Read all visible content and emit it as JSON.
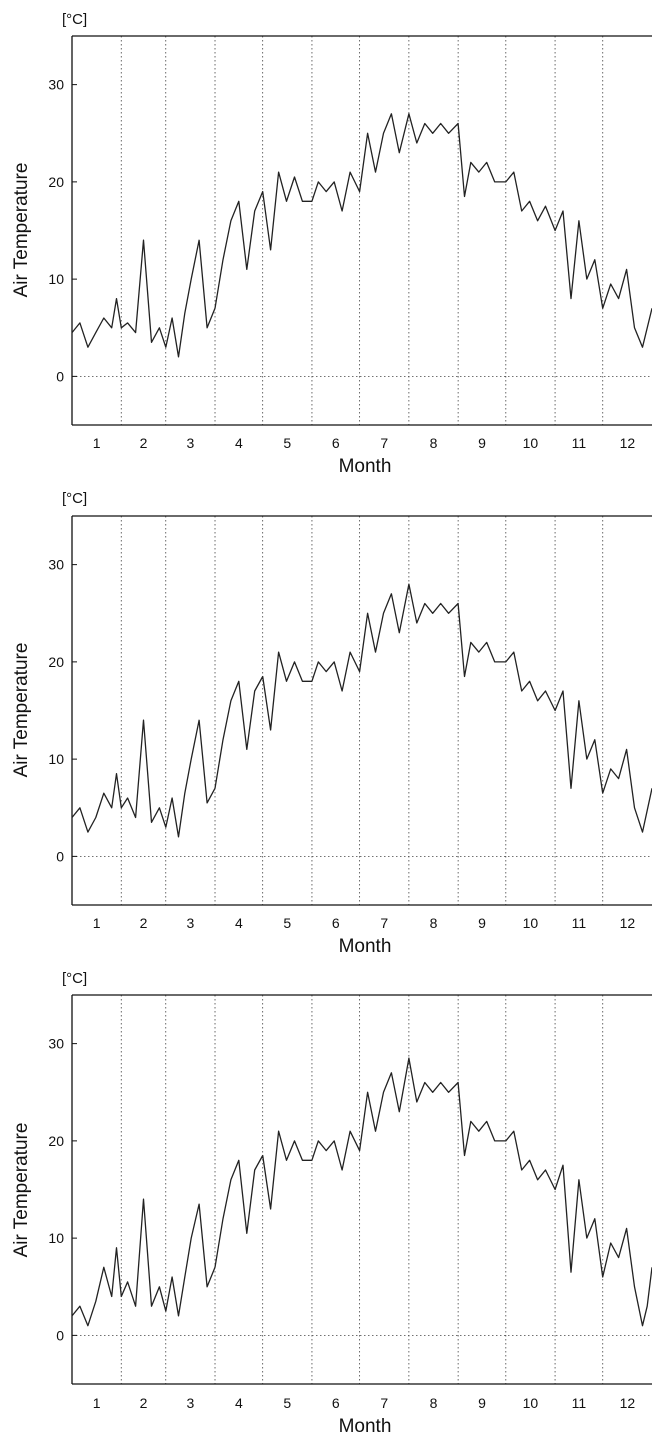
{
  "chart_data": [
    {
      "type": "line",
      "unit_label": "[°C]",
      "xlabel": "Month",
      "ylabel": "Air Temperature",
      "xlim": [
        0,
        365
      ],
      "ylim": [
        -5,
        35
      ],
      "yticks": [
        0,
        10,
        20,
        30
      ],
      "xtick_labels": [
        "1",
        "2",
        "3",
        "4",
        "5",
        "6",
        "7",
        "8",
        "9",
        "10",
        "11",
        "12"
      ],
      "month_boundaries_day": [
        31,
        59,
        90,
        120,
        151,
        181,
        212,
        243,
        273,
        304,
        334
      ],
      "grid": "dotted vertical month boundaries and dotted zero line",
      "series": [
        {
          "x": [
            0,
            5,
            10,
            15,
            20,
            25,
            28,
            31,
            35,
            40,
            45,
            50,
            55,
            59,
            63,
            67,
            71,
            75,
            80,
            85,
            90,
            95,
            100,
            105,
            110,
            115,
            120,
            125,
            130,
            135,
            140,
            145,
            151,
            155,
            160,
            165,
            170,
            175,
            181,
            186,
            191,
            196,
            201,
            206,
            212,
            217,
            222,
            227,
            232,
            237,
            243,
            247,
            251,
            256,
            261,
            266,
            273,
            278,
            283,
            288,
            293,
            298,
            304,
            309,
            314,
            319,
            324,
            329,
            334,
            339,
            344,
            349,
            354,
            359,
            365
          ],
          "y": [
            4.5,
            5.5,
            3,
            4.5,
            6,
            5,
            8,
            5,
            5.5,
            4.5,
            14,
            3.5,
            5,
            3,
            6,
            2,
            6.5,
            10,
            14,
            5,
            7,
            12,
            16,
            18,
            11,
            17,
            19,
            13,
            21,
            18,
            20.5,
            18,
            18,
            20,
            19,
            20,
            17,
            21,
            19,
            25,
            21,
            25,
            27,
            23,
            27,
            24,
            26,
            25,
            26,
            25,
            26,
            18.5,
            22,
            21,
            22,
            20,
            20,
            21,
            17,
            18,
            16,
            17.5,
            15,
            17,
            8,
            16,
            10,
            12,
            7,
            9.5,
            8,
            11,
            5,
            3,
            7
          ]
        }
      ]
    },
    {
      "type": "line",
      "unit_label": "[°C]",
      "xlabel": "Month",
      "ylabel": "Air Temperature",
      "xlim": [
        0,
        365
      ],
      "ylim": [
        -5,
        35
      ],
      "yticks": [
        0,
        10,
        20,
        30
      ],
      "xtick_labels": [
        "1",
        "2",
        "3",
        "4",
        "5",
        "6",
        "7",
        "8",
        "9",
        "10",
        "11",
        "12"
      ],
      "month_boundaries_day": [
        31,
        59,
        90,
        120,
        151,
        181,
        212,
        243,
        273,
        304,
        334
      ],
      "grid": "dotted vertical month boundaries and dotted zero line",
      "series": [
        {
          "x": [
            0,
            5,
            10,
            15,
            20,
            25,
            28,
            31,
            35,
            40,
            45,
            50,
            55,
            59,
            63,
            67,
            71,
            75,
            80,
            85,
            90,
            95,
            100,
            105,
            110,
            115,
            120,
            125,
            130,
            135,
            140,
            145,
            151,
            155,
            160,
            165,
            170,
            175,
            181,
            186,
            191,
            196,
            201,
            206,
            212,
            217,
            222,
            227,
            232,
            237,
            243,
            247,
            251,
            256,
            261,
            266,
            273,
            278,
            283,
            288,
            293,
            298,
            304,
            309,
            314,
            319,
            324,
            329,
            334,
            339,
            344,
            349,
            354,
            359,
            365
          ],
          "y": [
            4,
            5,
            2.5,
            4,
            6.5,
            5,
            8.5,
            5,
            6,
            4,
            14,
            3.5,
            5,
            3,
            6,
            2,
            6.5,
            10,
            14,
            5.5,
            7,
            12,
            16,
            18,
            11,
            17,
            18.5,
            13,
            21,
            18,
            20,
            18,
            18,
            20,
            19,
            20,
            17,
            21,
            19,
            25,
            21,
            25,
            27,
            23,
            28,
            24,
            26,
            25,
            26,
            25,
            26,
            18.5,
            22,
            21,
            22,
            20,
            20,
            21,
            17,
            18,
            16,
            17,
            15,
            17,
            7,
            16,
            10,
            12,
            6.5,
            9,
            8,
            11,
            5,
            2.5,
            7
          ]
        }
      ]
    },
    {
      "type": "line",
      "unit_label": "[°C]",
      "xlabel": "Month",
      "ylabel": "Air Temperature",
      "xlim": [
        0,
        365
      ],
      "ylim": [
        -5,
        35
      ],
      "yticks": [
        0,
        10,
        20,
        30
      ],
      "xtick_labels": [
        "1",
        "2",
        "3",
        "4",
        "5",
        "6",
        "7",
        "8",
        "9",
        "10",
        "11",
        "12"
      ],
      "month_boundaries_day": [
        31,
        59,
        90,
        120,
        151,
        181,
        212,
        243,
        273,
        304,
        334
      ],
      "grid": "dotted vertical month boundaries and dotted zero line",
      "series": [
        {
          "x": [
            0,
            5,
            10,
            15,
            20,
            25,
            28,
            31,
            35,
            40,
            45,
            50,
            55,
            59,
            63,
            67,
            71,
            75,
            80,
            85,
            90,
            95,
            100,
            105,
            110,
            115,
            120,
            125,
            130,
            135,
            140,
            145,
            151,
            155,
            160,
            165,
            170,
            175,
            181,
            186,
            191,
            196,
            201,
            206,
            212,
            217,
            222,
            227,
            232,
            237,
            243,
            247,
            251,
            256,
            261,
            266,
            273,
            278,
            283,
            288,
            293,
            298,
            304,
            309,
            314,
            319,
            324,
            329,
            334,
            339,
            344,
            349,
            354,
            359,
            362,
            365
          ],
          "y": [
            2,
            3,
            1,
            3.5,
            7,
            4,
            9,
            4,
            5.5,
            3,
            14,
            3,
            5,
            2.5,
            6,
            2,
            6,
            10,
            13.5,
            5,
            7,
            12,
            16,
            18,
            10.5,
            17,
            18.5,
            13,
            21,
            18,
            20,
            18,
            18,
            20,
            19,
            20,
            17,
            21,
            19,
            25,
            21,
            25,
            27,
            23,
            28.5,
            24,
            26,
            25,
            26,
            25,
            26,
            18.5,
            22,
            21,
            22,
            20,
            20,
            21,
            17,
            18,
            16,
            17,
            15,
            17.5,
            6.5,
            16,
            10,
            12,
            6,
            9.5,
            8,
            11,
            5,
            1,
            3,
            7
          ]
        }
      ]
    }
  ]
}
